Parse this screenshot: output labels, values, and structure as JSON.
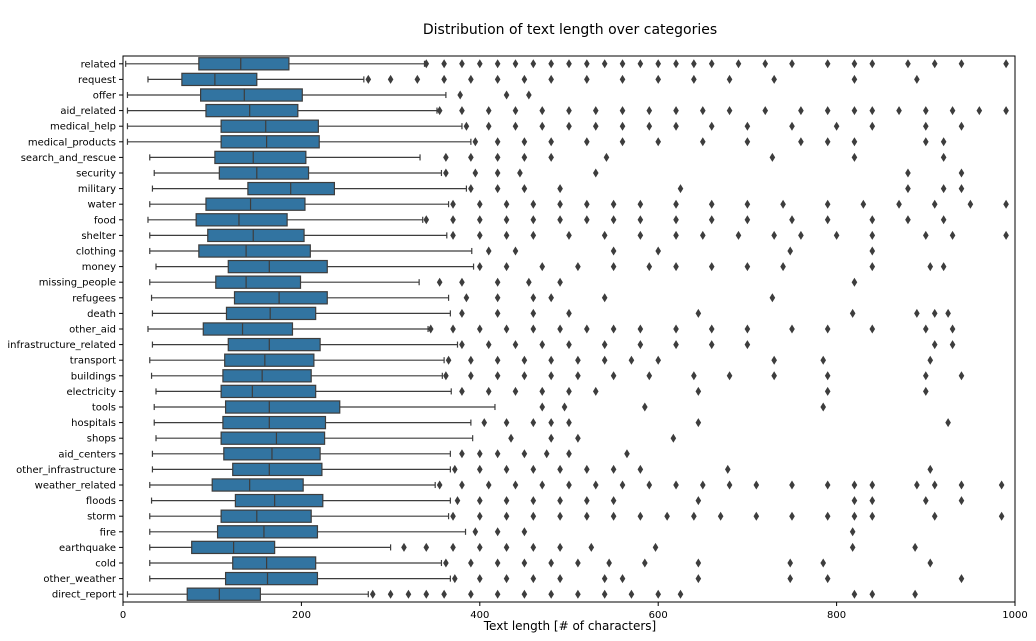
{
  "chart_data": {
    "type": "boxplot",
    "orientation": "horizontal",
    "title": "Distribution of text length over categories",
    "xlabel": "Text length [# of characters]",
    "ylabel": "",
    "xlim": [
      0,
      1000
    ],
    "xticks": [
      "0",
      "200",
      "400",
      "600",
      "800",
      "1000"
    ],
    "xtick_values": [
      0,
      200,
      400,
      600,
      800,
      1000
    ],
    "box_color": "#3274a1",
    "line_color": "#3d3d3d",
    "grid": false,
    "categories": [
      {
        "name": "related",
        "whisker_low": 3,
        "q1": 85,
        "median": 132,
        "q3": 186,
        "whisker_high": 338,
        "fliers": [
          340,
          360,
          380,
          400,
          420,
          440,
          460,
          480,
          500,
          520,
          540,
          560,
          580,
          600,
          620,
          640,
          660,
          690,
          720,
          750,
          790,
          820,
          840,
          880,
          910,
          940,
          990
        ]
      },
      {
        "name": "request",
        "whisker_low": 28,
        "q1": 66,
        "median": 103,
        "q3": 150,
        "whisker_high": 270,
        "fliers": [
          275,
          300,
          330,
          360,
          390,
          420,
          450,
          480,
          520,
          560,
          600,
          640,
          680,
          730,
          820,
          890
        ]
      },
      {
        "name": "offer",
        "whisker_low": 5,
        "q1": 87,
        "median": 136,
        "q3": 201,
        "whisker_high": 362,
        "fliers": [
          378,
          430,
          455
        ]
      },
      {
        "name": "aid_related",
        "whisker_low": 5,
        "q1": 93,
        "median": 142,
        "q3": 196,
        "whisker_high": 352,
        "fliers": [
          355,
          380,
          410,
          440,
          470,
          500,
          530,
          560,
          590,
          620,
          650,
          680,
          720,
          760,
          790,
          820,
          840,
          870,
          900,
          930,
          960,
          990
        ]
      },
      {
        "name": "medical_help",
        "whisker_low": 5,
        "q1": 110,
        "median": 160,
        "q3": 219,
        "whisker_high": 380,
        "fliers": [
          385,
          410,
          440,
          470,
          500,
          530,
          560,
          590,
          620,
          660,
          700,
          750,
          800,
          840,
          900,
          940
        ]
      },
      {
        "name": "medical_products",
        "whisker_low": 5,
        "q1": 110,
        "median": 161,
        "q3": 220,
        "whisker_high": 390,
        "fliers": [
          395,
          420,
          450,
          480,
          520,
          560,
          600,
          650,
          700,
          760,
          790,
          820,
          900,
          920
        ]
      },
      {
        "name": "search_and_rescue",
        "whisker_low": 30,
        "q1": 103,
        "median": 146,
        "q3": 205,
        "whisker_high": 333,
        "fliers": [
          362,
          390,
          420,
          450,
          480,
          542,
          728,
          820,
          920
        ]
      },
      {
        "name": "security",
        "whisker_low": 35,
        "q1": 108,
        "median": 150,
        "q3": 208,
        "whisker_high": 357,
        "fliers": [
          362,
          395,
          420,
          445,
          530,
          880,
          940
        ]
      },
      {
        "name": "military",
        "whisker_low": 33,
        "q1": 140,
        "median": 188,
        "q3": 237,
        "whisker_high": 385,
        "fliers": [
          390,
          420,
          450,
          490,
          625,
          880,
          920,
          940
        ]
      },
      {
        "name": "water",
        "whisker_low": 30,
        "q1": 93,
        "median": 143,
        "q3": 204,
        "whisker_high": 365,
        "fliers": [
          370,
          400,
          430,
          460,
          490,
          520,
          550,
          580,
          620,
          660,
          700,
          740,
          790,
          830,
          870,
          910,
          950,
          990
        ]
      },
      {
        "name": "food",
        "whisker_low": 28,
        "q1": 82,
        "median": 130,
        "q3": 184,
        "whisker_high": 336,
        "fliers": [
          340,
          370,
          400,
          430,
          460,
          490,
          520,
          550,
          580,
          620,
          660,
          700,
          750,
          790,
          840,
          880,
          920
        ]
      },
      {
        "name": "shelter",
        "whisker_low": 30,
        "q1": 95,
        "median": 146,
        "q3": 203,
        "whisker_high": 363,
        "fliers": [
          370,
          400,
          430,
          460,
          500,
          540,
          580,
          620,
          650,
          690,
          730,
          760,
          800,
          840,
          900,
          930,
          990
        ]
      },
      {
        "name": "clothing",
        "whisker_low": 30,
        "q1": 85,
        "median": 138,
        "q3": 210,
        "whisker_high": 391,
        "fliers": [
          410,
          440,
          550,
          600,
          748,
          840
        ]
      },
      {
        "name": "money",
        "whisker_low": 37,
        "q1": 118,
        "median": 164,
        "q3": 229,
        "whisker_high": 393,
        "fliers": [
          400,
          430,
          470,
          510,
          550,
          590,
          620,
          660,
          700,
          740,
          840,
          905,
          920
        ]
      },
      {
        "name": "missing_people",
        "whisker_low": 30,
        "q1": 104,
        "median": 138,
        "q3": 199,
        "whisker_high": 332,
        "fliers": [
          355,
          380,
          420,
          455,
          490,
          820
        ]
      },
      {
        "name": "refugees",
        "whisker_low": 32,
        "q1": 125,
        "median": 175,
        "q3": 229,
        "whisker_high": 365,
        "fliers": [
          385,
          420,
          460,
          480,
          540,
          728
        ]
      },
      {
        "name": "death",
        "whisker_low": 33,
        "q1": 116,
        "median": 165,
        "q3": 216,
        "whisker_high": 367,
        "fliers": [
          380,
          420,
          460,
          500,
          645,
          818,
          890,
          910,
          925
        ]
      },
      {
        "name": "other_aid",
        "whisker_low": 28,
        "q1": 90,
        "median": 134,
        "q3": 190,
        "whisker_high": 342,
        "fliers": [
          345,
          370,
          400,
          430,
          460,
          490,
          520,
          550,
          580,
          620,
          660,
          700,
          750,
          790,
          840,
          900,
          930
        ]
      },
      {
        "name": "infrastructure_related",
        "whisker_low": 33,
        "q1": 118,
        "median": 164,
        "q3": 221,
        "whisker_high": 375,
        "fliers": [
          380,
          410,
          440,
          470,
          500,
          540,
          580,
          620,
          660,
          700,
          910,
          930
        ]
      },
      {
        "name": "transport",
        "whisker_low": 30,
        "q1": 114,
        "median": 159,
        "q3": 214,
        "whisker_high": 360,
        "fliers": [
          365,
          390,
          420,
          450,
          480,
          510,
          540,
          570,
          600,
          730,
          785,
          905
        ]
      },
      {
        "name": "buildings",
        "whisker_low": 32,
        "q1": 112,
        "median": 156,
        "q3": 211,
        "whisker_high": 358,
        "fliers": [
          362,
          390,
          420,
          450,
          480,
          510,
          550,
          590,
          640,
          680,
          730,
          790,
          900,
          940
        ]
      },
      {
        "name": "electricity",
        "whisker_low": 37,
        "q1": 110,
        "median": 145,
        "q3": 216,
        "whisker_high": 368,
        "fliers": [
          380,
          410,
          440,
          470,
          500,
          530,
          645,
          790,
          900
        ]
      },
      {
        "name": "tools",
        "whisker_low": 35,
        "q1": 115,
        "median": 164,
        "q3": 243,
        "whisker_high": 417,
        "fliers": [
          470,
          495,
          585,
          785
        ]
      },
      {
        "name": "hospitals",
        "whisker_low": 35,
        "q1": 112,
        "median": 164,
        "q3": 227,
        "whisker_high": 390,
        "fliers": [
          405,
          430,
          460,
          480,
          500,
          645,
          925
        ]
      },
      {
        "name": "shops",
        "whisker_low": 37,
        "q1": 110,
        "median": 172,
        "q3": 226,
        "whisker_high": 392,
        "fliers": [
          435,
          480,
          510,
          617
        ]
      },
      {
        "name": "aid_centers",
        "whisker_low": 33,
        "q1": 113,
        "median": 167,
        "q3": 221,
        "whisker_high": 367,
        "fliers": [
          380,
          400,
          420,
          450,
          475,
          500,
          565
        ]
      },
      {
        "name": "other_infrastructure",
        "whisker_low": 33,
        "q1": 123,
        "median": 164,
        "q3": 223,
        "whisker_high": 367,
        "fliers": [
          372,
          400,
          430,
          460,
          490,
          520,
          550,
          580,
          678,
          905
        ]
      },
      {
        "name": "weather_related",
        "whisker_low": 30,
        "q1": 100,
        "median": 142,
        "q3": 202,
        "whisker_high": 350,
        "fliers": [
          355,
          380,
          410,
          440,
          470,
          500,
          530,
          560,
          590,
          620,
          650,
          680,
          710,
          750,
          790,
          820,
          840,
          890,
          910,
          940,
          985
        ]
      },
      {
        "name": "floods",
        "whisker_low": 32,
        "q1": 126,
        "median": 170,
        "q3": 224,
        "whisker_high": 367,
        "fliers": [
          375,
          400,
          430,
          460,
          490,
          520,
          550,
          645,
          820,
          840,
          900,
          940
        ]
      },
      {
        "name": "storm",
        "whisker_low": 30,
        "q1": 110,
        "median": 150,
        "q3": 211,
        "whisker_high": 365,
        "fliers": [
          370,
          400,
          430,
          460,
          490,
          520,
          550,
          580,
          610,
          640,
          670,
          710,
          750,
          790,
          820,
          840,
          910,
          985
        ]
      },
      {
        "name": "fire",
        "whisker_low": 30,
        "q1": 106,
        "median": 158,
        "q3": 218,
        "whisker_high": 384,
        "fliers": [
          395,
          420,
          450,
          818
        ]
      },
      {
        "name": "earthquake",
        "whisker_low": 30,
        "q1": 77,
        "median": 124,
        "q3": 170,
        "whisker_high": 300,
        "fliers": [
          315,
          340,
          370,
          400,
          430,
          460,
          490,
          525,
          597,
          818,
          888
        ]
      },
      {
        "name": "cold",
        "whisker_low": 30,
        "q1": 123,
        "median": 161,
        "q3": 216,
        "whisker_high": 357,
        "fliers": [
          362,
          390,
          420,
          450,
          480,
          510,
          545,
          585,
          645,
          748,
          785,
          905
        ]
      },
      {
        "name": "other_weather",
        "whisker_low": 30,
        "q1": 115,
        "median": 162,
        "q3": 218,
        "whisker_high": 367,
        "fliers": [
          372,
          400,
          430,
          460,
          490,
          540,
          560,
          645,
          748,
          790,
          940
        ]
      },
      {
        "name": "direct_report",
        "whisker_low": 5,
        "q1": 72,
        "median": 108,
        "q3": 154,
        "whisker_high": 275,
        "fliers": [
          280,
          300,
          320,
          340,
          360,
          390,
          420,
          450,
          480,
          510,
          540,
          570,
          600,
          625,
          820,
          840,
          888
        ]
      }
    ]
  }
}
